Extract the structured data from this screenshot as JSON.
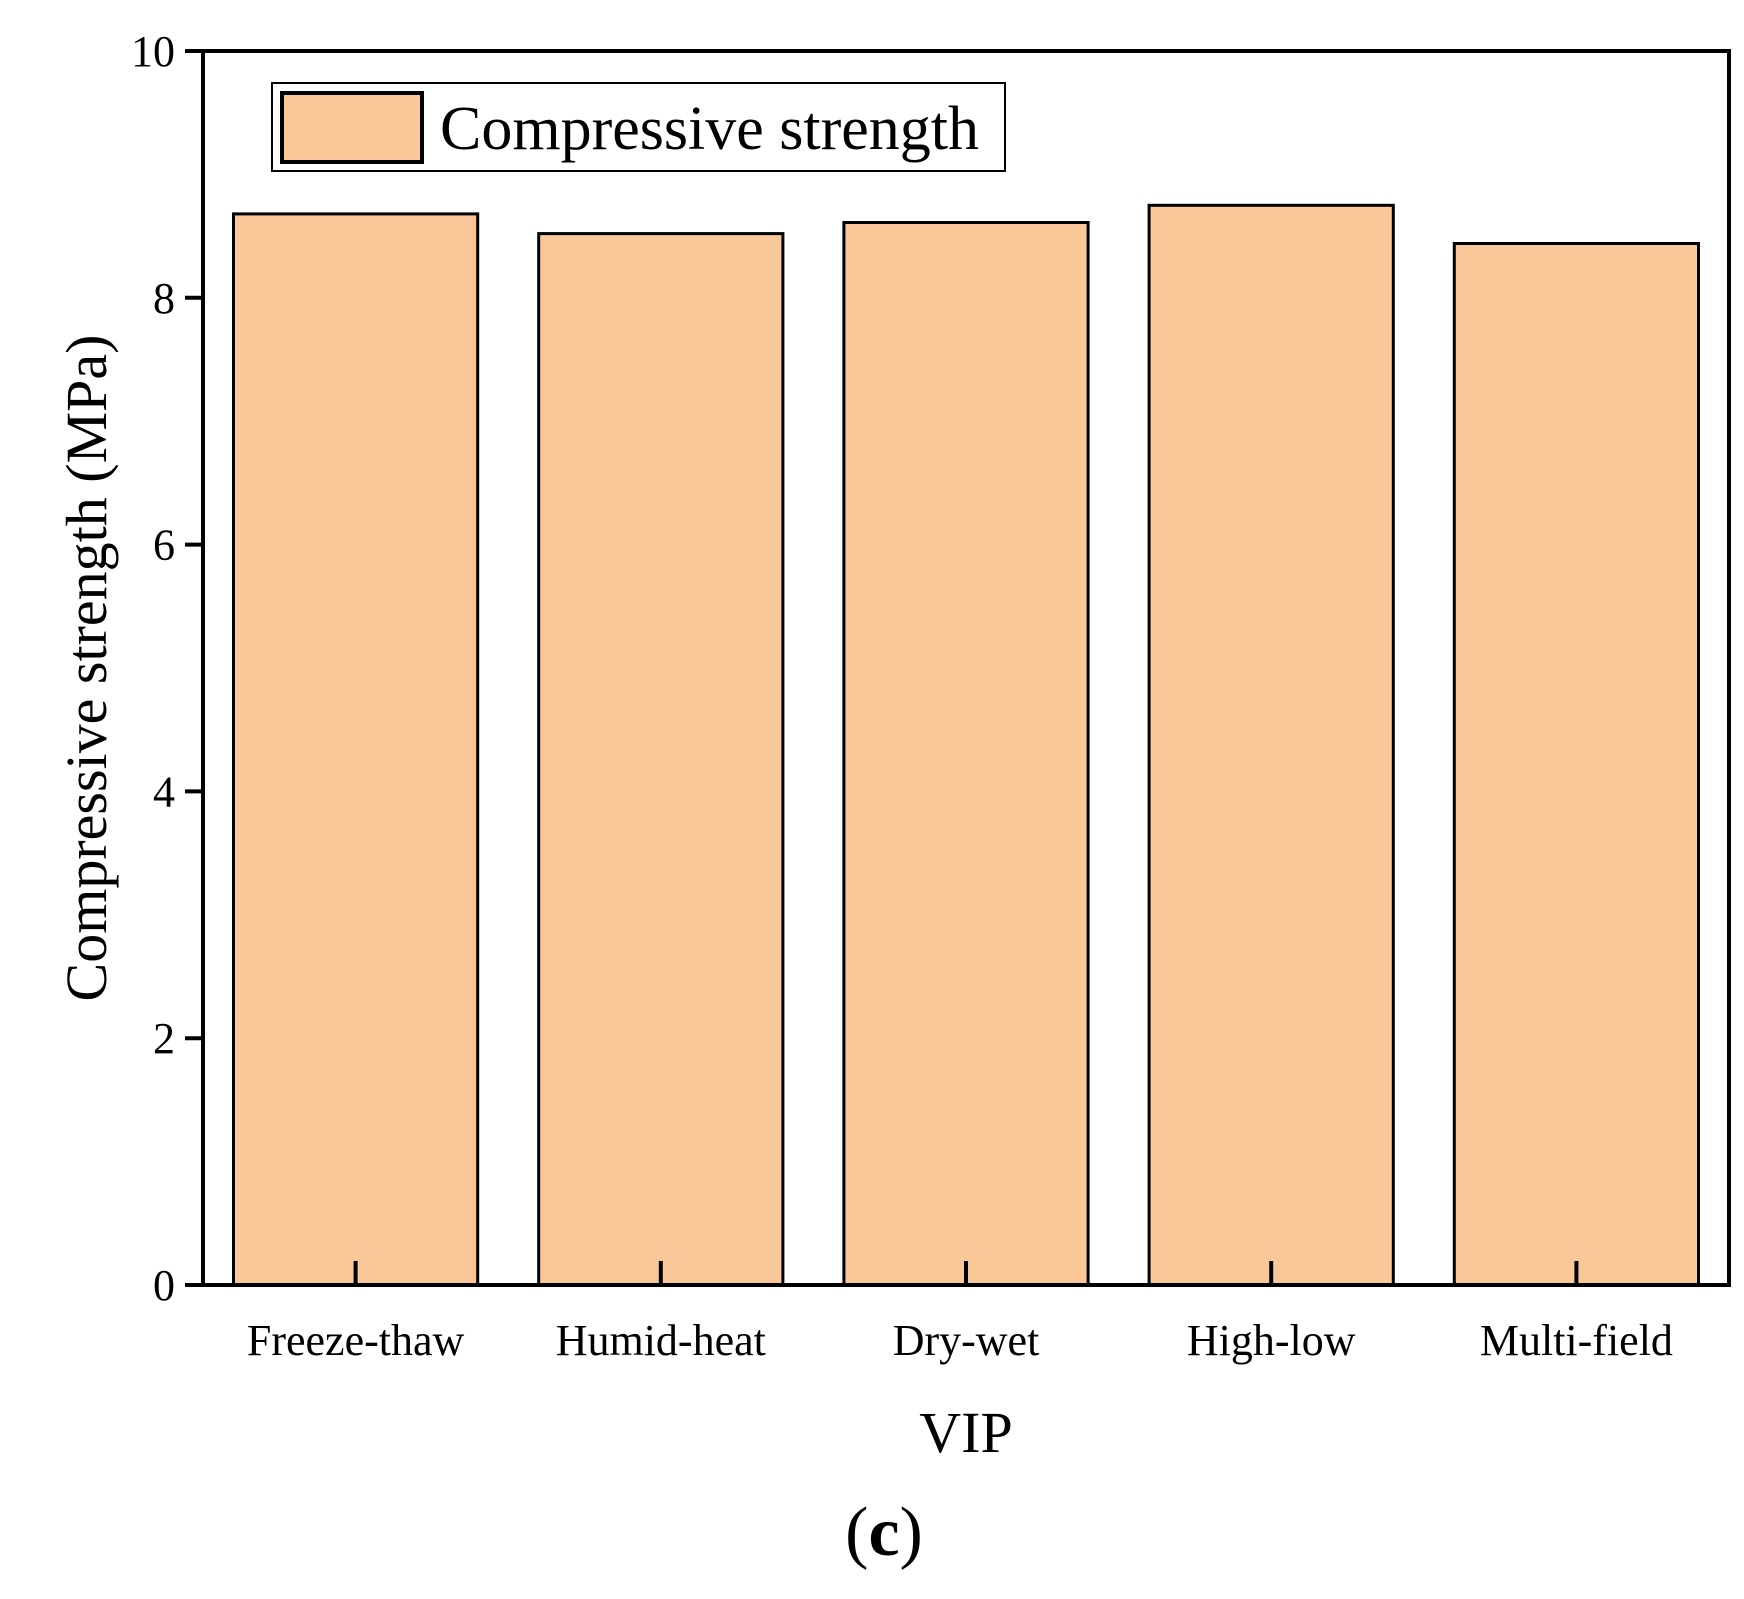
{
  "chart_data": {
    "type": "bar",
    "title": "",
    "xlabel": "VIP",
    "ylabel": "Compressive strength (MPa)",
    "categories": [
      "Freeze-thaw",
      "Humid-heat",
      "Dry-wet",
      "High-low",
      "Multi-field"
    ],
    "series": [
      {
        "name": "Compressive strength",
        "values": [
          8.68,
          8.52,
          8.61,
          8.75,
          8.44
        ]
      }
    ],
    "ylim": [
      0,
      10
    ],
    "yticks": [
      0,
      2,
      4,
      6,
      8,
      10
    ],
    "ytick_labels": [
      "0",
      "2",
      "4",
      "6",
      "8",
      "10"
    ],
    "legend_position": "top-left",
    "grid": false,
    "colors": {
      "bar_fill": "#FAC898",
      "bar_stroke": "#000000"
    }
  },
  "panel_label": {
    "open": "(",
    "letter": "c",
    "close": ")"
  }
}
